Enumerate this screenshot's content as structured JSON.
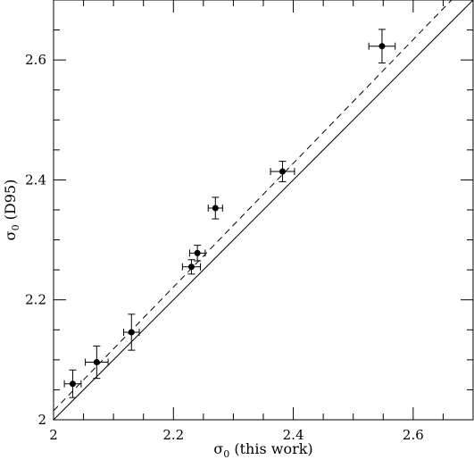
{
  "chart_data": {
    "type": "scatter",
    "title": "",
    "xlabel": "σ",
    "xlabel_sub": "0",
    "xlabel_rest": " (this work)",
    "ylabel": "σ",
    "ylabel_sub": "0",
    "ylabel_rest": " (D95)",
    "xlim": [
      2.0,
      2.7
    ],
    "ylim": [
      2.0,
      2.7
    ],
    "x_ticks": [
      2.0,
      2.2,
      2.4,
      2.6
    ],
    "x_tick_labels": [
      "2",
      "2.2",
      "2.4",
      "2.6"
    ],
    "y_ticks": [
      2.0,
      2.2,
      2.4,
      2.6
    ],
    "y_tick_labels": [
      "2",
      "2.2",
      "2.4",
      "2.6"
    ],
    "x_minor_step": 0.05,
    "y_minor_step": 0.05,
    "grid": false,
    "points": [
      {
        "x": 2.032,
        "y": 2.06,
        "xerr": 0.014,
        "yerr": 0.023
      },
      {
        "x": 2.072,
        "y": 2.096,
        "xerr": 0.019,
        "yerr": 0.027
      },
      {
        "x": 2.13,
        "y": 2.146,
        "xerr": 0.013,
        "yerr": 0.03
      },
      {
        "x": 2.23,
        "y": 2.255,
        "xerr": 0.015,
        "yerr": 0.012
      },
      {
        "x": 2.24,
        "y": 2.278,
        "xerr": 0.013,
        "yerr": 0.013
      },
      {
        "x": 2.27,
        "y": 2.353,
        "xerr": 0.012,
        "yerr": 0.018
      },
      {
        "x": 2.382,
        "y": 2.414,
        "xerr": 0.02,
        "yerr": 0.017
      },
      {
        "x": 2.548,
        "y": 2.623,
        "xerr": 0.022,
        "yerr": 0.028
      }
    ],
    "reference_lines": [
      {
        "style": "solid",
        "x": [
          2.0,
          2.7
        ],
        "y": [
          2.0,
          2.7
        ]
      },
      {
        "style": "dashed",
        "x": [
          2.0,
          2.664
        ],
        "y": [
          2.015,
          2.7
        ]
      }
    ]
  }
}
